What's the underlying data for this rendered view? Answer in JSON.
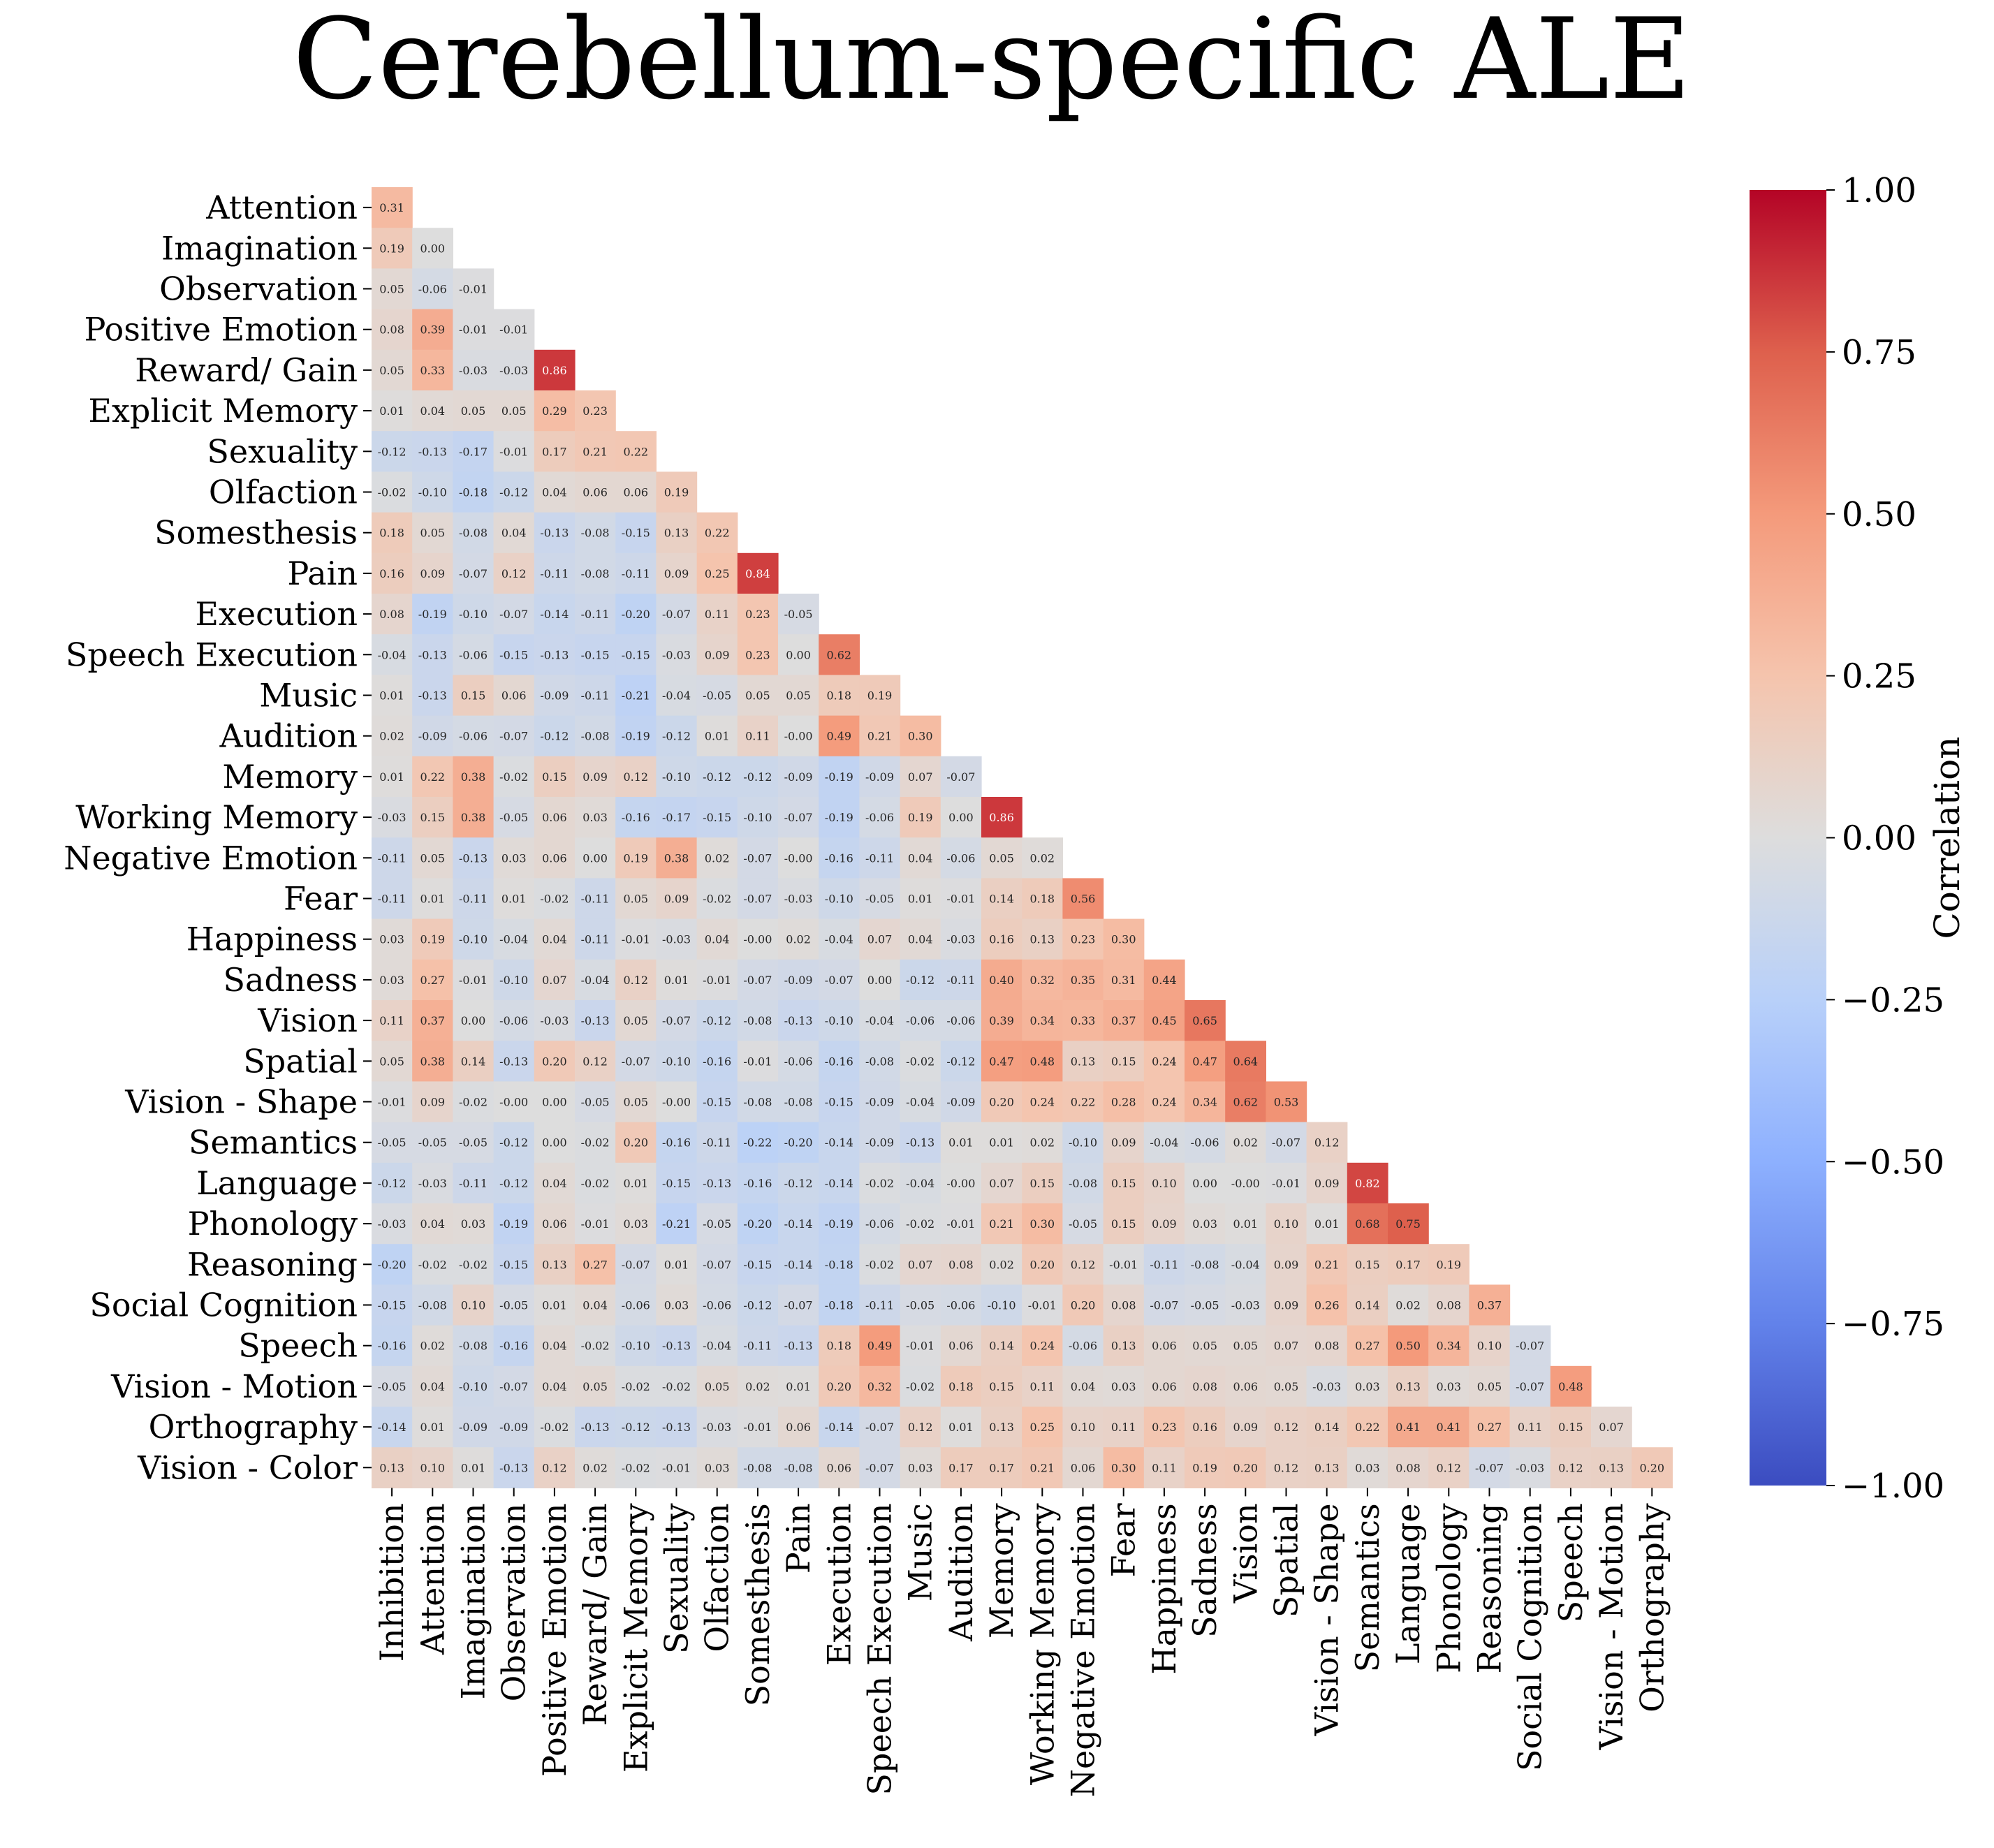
{
  "chart_data": {
    "type": "heatmap",
    "title": "Cerebellum-specific ALE",
    "colorbar_label": "Correlation",
    "colorbar_ticks": [
      "1.00",
      "0.75",
      "0.50",
      "0.25",
      "0.00",
      "−0.25",
      "−0.50",
      "−0.75",
      "−1.00"
    ],
    "vmin": -1.0,
    "vmax": 1.0,
    "colormap": "coolwarm",
    "mask": "lower-triangle",
    "row_labels": [
      "Attention",
      "Imagination",
      "Observation",
      "Positive Emotion",
      "Reward/ Gain",
      "Explicit Memory",
      "Sexuality",
      "Olfaction",
      "Somesthesis",
      "Pain",
      "Execution",
      "Speech Execution",
      "Music",
      "Audition",
      "Memory",
      "Working Memory",
      "Negative Emotion",
      "Fear",
      "Happiness",
      "Sadness",
      "Vision",
      "Spatial",
      "Vision - Shape",
      "Semantics",
      "Language",
      "Phonology",
      "Reasoning",
      "Social Cognition",
      "Speech",
      "Vision - Motion",
      "Orthography",
      "Vision - Color"
    ],
    "col_labels": [
      "Inhibition",
      "Attention",
      "Imagination",
      "Observation",
      "Positive Emotion",
      "Reward/ Gain",
      "Explicit Memory",
      "Sexuality",
      "Olfaction",
      "Somesthesis",
      "Pain",
      "Execution",
      "Speech Execution",
      "Music",
      "Audition",
      "Memory",
      "Working Memory",
      "Negative Emotion",
      "Fear",
      "Happiness",
      "Sadness",
      "Vision",
      "Spatial",
      "Vision - Shape",
      "Semantics",
      "Language",
      "Phonology",
      "Reasoning",
      "Social Cognition",
      "Speech",
      "Vision - Motion",
      "Orthography"
    ],
    "values": [
      [
        0.31
      ],
      [
        0.19,
        0.0
      ],
      [
        0.05,
        -0.06,
        -0.01
      ],
      [
        0.08,
        0.39,
        -0.01,
        -0.01
      ],
      [
        0.05,
        0.33,
        -0.03,
        -0.03,
        0.86
      ],
      [
        0.01,
        0.04,
        0.05,
        0.05,
        0.29,
        0.23
      ],
      [
        -0.12,
        -0.13,
        -0.17,
        -0.01,
        0.17,
        0.21,
        0.22
      ],
      [
        -0.02,
        -0.1,
        -0.18,
        -0.12,
        0.04,
        0.06,
        0.06,
        0.19
      ],
      [
        0.18,
        0.05,
        -0.08,
        0.04,
        -0.13,
        -0.08,
        -0.15,
        0.13,
        0.22
      ],
      [
        0.16,
        0.09,
        -0.07,
        0.12,
        -0.11,
        -0.08,
        -0.11,
        0.09,
        0.25,
        0.84
      ],
      [
        0.08,
        -0.19,
        -0.1,
        -0.07,
        -0.14,
        -0.11,
        -0.2,
        -0.07,
        0.11,
        0.23,
        -0.05
      ],
      [
        -0.04,
        -0.13,
        -0.06,
        -0.15,
        -0.13,
        -0.15,
        -0.15,
        -0.03,
        0.09,
        0.23,
        0.0,
        0.62
      ],
      [
        0.01,
        -0.13,
        0.15,
        0.06,
        -0.09,
        -0.11,
        -0.21,
        -0.04,
        -0.05,
        0.05,
        0.05,
        0.18,
        0.19
      ],
      [
        0.02,
        -0.09,
        -0.06,
        -0.07,
        -0.12,
        -0.08,
        -0.19,
        -0.12,
        0.01,
        0.11,
        -0.0,
        0.49,
        0.21,
        0.3
      ],
      [
        0.01,
        0.22,
        0.38,
        -0.02,
        0.15,
        0.09,
        0.12,
        -0.1,
        -0.12,
        -0.12,
        -0.09,
        -0.19,
        -0.09,
        0.07,
        -0.07
      ],
      [
        -0.03,
        0.15,
        0.38,
        -0.05,
        0.06,
        0.03,
        -0.16,
        -0.17,
        -0.15,
        -0.1,
        -0.07,
        -0.19,
        -0.06,
        0.19,
        0.0,
        0.86
      ],
      [
        -0.11,
        0.05,
        -0.13,
        0.03,
        0.06,
        0.0,
        0.19,
        0.38,
        0.02,
        -0.07,
        -0.0,
        -0.16,
        -0.11,
        0.04,
        -0.06,
        0.05,
        0.02
      ],
      [
        -0.11,
        0.01,
        -0.11,
        0.01,
        -0.02,
        -0.11,
        0.05,
        0.09,
        -0.02,
        -0.07,
        -0.03,
        -0.1,
        -0.05,
        0.01,
        -0.01,
        0.14,
        0.18,
        0.56
      ],
      [
        0.03,
        0.19,
        -0.1,
        -0.04,
        0.04,
        -0.11,
        -0.01,
        -0.03,
        0.04,
        -0.0,
        0.02,
        -0.04,
        0.07,
        0.04,
        -0.03,
        0.16,
        0.13,
        0.23,
        0.3
      ],
      [
        0.03,
        0.27,
        -0.01,
        -0.1,
        0.07,
        -0.04,
        0.12,
        0.01,
        -0.01,
        -0.07,
        -0.09,
        -0.07,
        0.0,
        -0.12,
        -0.11,
        0.4,
        0.32,
        0.35,
        0.31,
        0.44
      ],
      [
        0.11,
        0.37,
        0.0,
        -0.06,
        -0.03,
        -0.13,
        0.05,
        -0.07,
        -0.12,
        -0.08,
        -0.13,
        -0.1,
        -0.04,
        -0.06,
        -0.06,
        0.39,
        0.34,
        0.33,
        0.37,
        0.45,
        0.65
      ],
      [
        0.05,
        0.38,
        0.14,
        -0.13,
        0.2,
        0.12,
        -0.07,
        -0.1,
        -0.16,
        -0.01,
        -0.06,
        -0.16,
        -0.08,
        -0.02,
        -0.12,
        0.47,
        0.48,
        0.13,
        0.15,
        0.24,
        0.47,
        0.64
      ],
      [
        -0.01,
        0.09,
        -0.02,
        -0.0,
        0.0,
        -0.05,
        0.05,
        -0.0,
        -0.15,
        -0.08,
        -0.08,
        -0.15,
        -0.09,
        -0.04,
        -0.09,
        0.2,
        0.24,
        0.22,
        0.28,
        0.24,
        0.34,
        0.62,
        0.53
      ],
      [
        -0.05,
        -0.05,
        -0.05,
        -0.12,
        0.0,
        -0.02,
        0.2,
        -0.16,
        -0.11,
        -0.22,
        -0.2,
        -0.14,
        -0.09,
        -0.13,
        0.01,
        0.01,
        0.02,
        -0.1,
        0.09,
        -0.04,
        -0.06,
        0.02,
        -0.07,
        0.12
      ],
      [
        -0.12,
        -0.03,
        -0.11,
        -0.12,
        0.04,
        -0.02,
        0.01,
        -0.15,
        -0.13,
        -0.16,
        -0.12,
        -0.14,
        -0.02,
        -0.04,
        -0.0,
        0.07,
        0.15,
        -0.08,
        0.15,
        0.1,
        0.0,
        -0.0,
        -0.01,
        0.09,
        0.82
      ],
      [
        -0.03,
        0.04,
        0.03,
        -0.19,
        0.06,
        -0.01,
        0.03,
        -0.21,
        -0.05,
        -0.2,
        -0.14,
        -0.19,
        -0.06,
        -0.02,
        -0.01,
        0.21,
        0.3,
        -0.05,
        0.15,
        0.09,
        0.03,
        0.01,
        0.1,
        0.01,
        0.68,
        0.75
      ],
      [
        -0.2,
        -0.02,
        -0.02,
        -0.15,
        0.13,
        0.27,
        -0.07,
        0.01,
        -0.07,
        -0.15,
        -0.14,
        -0.18,
        -0.02,
        0.07,
        0.08,
        0.02,
        0.2,
        0.12,
        -0.01,
        -0.11,
        -0.08,
        -0.04,
        0.09,
        0.21,
        0.15,
        0.17,
        0.19
      ],
      [
        -0.15,
        -0.08,
        0.1,
        -0.05,
        0.01,
        0.04,
        -0.06,
        0.03,
        -0.06,
        -0.12,
        -0.07,
        -0.18,
        -0.11,
        -0.05,
        -0.06,
        -0.1,
        -0.01,
        0.2,
        0.08,
        -0.07,
        -0.05,
        -0.03,
        0.09,
        0.26,
        0.14,
        0.02,
        0.08,
        0.37
      ],
      [
        -0.16,
        0.02,
        -0.08,
        -0.16,
        0.04,
        -0.02,
        -0.1,
        -0.13,
        -0.04,
        -0.11,
        -0.13,
        0.18,
        0.49,
        -0.01,
        0.06,
        0.14,
        0.24,
        -0.06,
        0.13,
        0.06,
        0.05,
        0.05,
        0.07,
        0.08,
        0.27,
        0.5,
        0.34,
        0.1,
        -0.07
      ],
      [
        -0.05,
        0.04,
        -0.1,
        -0.07,
        0.04,
        0.05,
        -0.02,
        -0.02,
        0.05,
        0.02,
        0.01,
        0.2,
        0.32,
        -0.02,
        0.18,
        0.15,
        0.11,
        0.04,
        0.03,
        0.06,
        0.08,
        0.06,
        0.05,
        -0.03,
        0.03,
        0.13,
        0.03,
        0.05,
        -0.07,
        0.48
      ],
      [
        -0.14,
        0.01,
        -0.09,
        -0.09,
        -0.02,
        -0.13,
        -0.12,
        -0.13,
        -0.03,
        -0.01,
        0.06,
        -0.14,
        -0.07,
        0.12,
        0.01,
        0.13,
        0.25,
        0.1,
        0.11,
        0.23,
        0.16,
        0.09,
        0.12,
        0.14,
        0.22,
        0.41,
        0.41,
        0.27,
        0.11,
        0.15,
        0.07
      ],
      [
        0.13,
        0.1,
        0.01,
        -0.13,
        0.12,
        0.02,
        -0.02,
        -0.01,
        0.03,
        -0.08,
        -0.08,
        0.06,
        -0.07,
        0.03,
        0.17,
        0.17,
        0.21,
        0.06,
        0.3,
        0.11,
        0.19,
        0.2,
        0.12,
        0.13,
        0.03,
        0.08,
        0.12,
        -0.07,
        -0.03,
        0.12,
        0.13,
        0.2
      ]
    ]
  }
}
